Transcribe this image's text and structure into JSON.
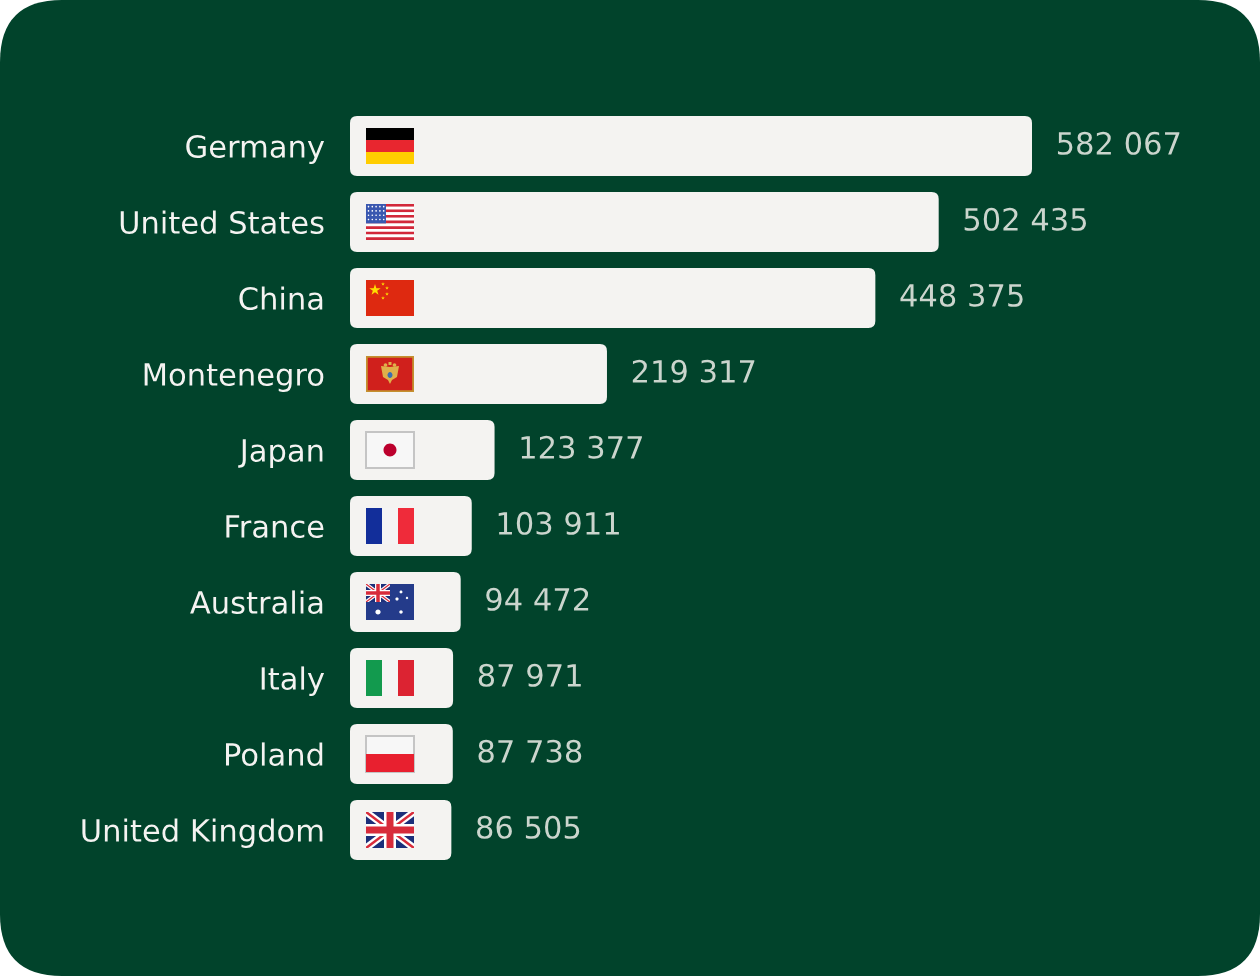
{
  "chart_data": {
    "type": "bar",
    "orientation": "horizontal",
    "categories": [
      "Germany",
      "United States",
      "China",
      "Montenegro",
      "Japan",
      "France",
      "Australia",
      "Italy",
      "Poland",
      "United Kingdom"
    ],
    "values": [
      582067,
      502435,
      448375,
      219317,
      123377,
      103911,
      94472,
      87971,
      87738,
      86505
    ],
    "color": "#f4f3f1",
    "value_labels": [
      "582 067",
      "502 435",
      "448 375",
      "219 317",
      "123 377",
      "103 911",
      "94 472",
      "87 971",
      "87 738",
      "86 505"
    ]
  }
}
